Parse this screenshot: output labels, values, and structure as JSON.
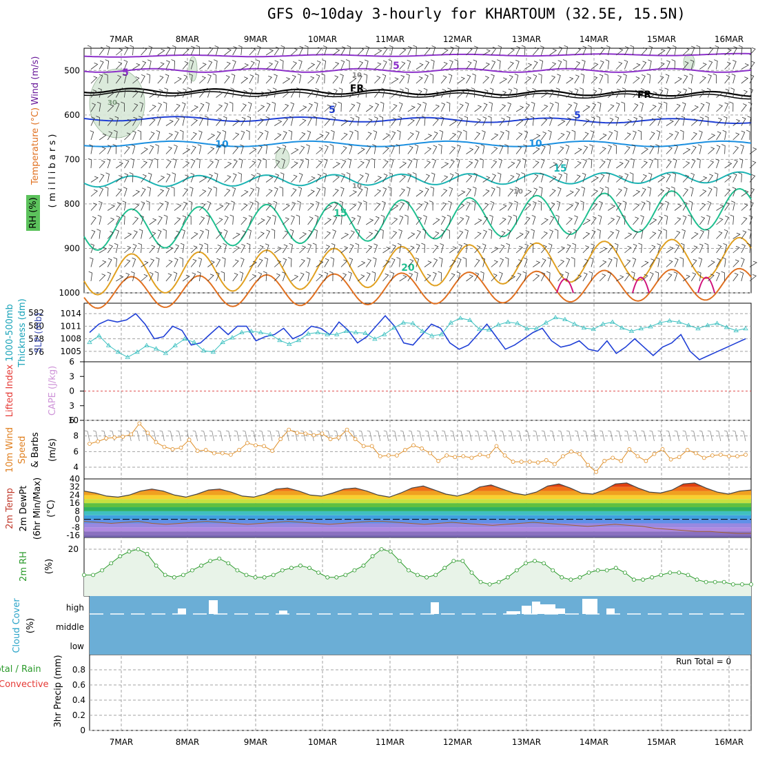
{
  "header": {
    "title": "GFS 0~10day 3-hourly for KHARTOUM (32.5E, 15.5N)"
  },
  "dates": [
    "7MAR",
    "8MAR",
    "9MAR",
    "10MAR",
    "11MAR",
    "12MAR",
    "13MAR",
    "14MAR",
    "15MAR",
    "16MAR"
  ],
  "colors": {
    "temp_purple": "#8b2fc9",
    "temp_black": "#000000",
    "temp_blue": "#1f3fd6",
    "temp_lightblue": "#1a8fe0",
    "temp_teal": "#1ab3b3",
    "temp_green": "#1fbf8f",
    "temp_orange": "#e0a020",
    "temp_darkorange": "#e07020",
    "temp_magenta": "#d0107a",
    "rh_green": "#9fc99f",
    "slp_line": "#1f3fd6",
    "thickness_line": "#3ac0c0",
    "wind_line": "#e0902a",
    "rh2m_line": "#2a9a2a",
    "rh2m_fill": "#e8f3e8",
    "cloud_bg": "#6baed6",
    "grid": "#a0a0a0"
  },
  "panels": {
    "sounding": {
      "labels": [
        "Wind (m/s)",
        "Temperature (°C)",
        "RH (%)"
      ],
      "axis_label": "( m i l l i b a r s )",
      "contour_labels": {
        "t5a": "5",
        "t5b": "5",
        "fr1": "FR",
        "fr2": "FR",
        "t5c": "5",
        "t5d": "5",
        "t10a": "10",
        "t10b": "10",
        "t15a": "15",
        "t15b": "15",
        "t20": "20",
        "rh30": "30",
        "rh10a": "10",
        "rh10b": "10",
        "rh10c": "10"
      }
    },
    "thickness": {
      "labels": [
        "1000-500mb",
        "Thickness (dm)",
        "SLP (mb)"
      ]
    },
    "lifted": {
      "labels": [
        "Lifted Index",
        "CAPE (J/kg)"
      ]
    },
    "wind10m": {
      "labels": [
        "10m Wind",
        "Speed",
        "& Barbs",
        "(m/s)"
      ]
    },
    "temp2m": {
      "labels": [
        "2m Temp",
        "2m DewPt",
        "(6hr Min/Max)",
        "(°C)"
      ]
    },
    "rh2m": {
      "labels": [
        "2m RH",
        "(%)"
      ]
    },
    "cloud": {
      "labels": [
        "Cloud Cover",
        "(%)"
      ],
      "levels": [
        "high",
        "middle",
        "low"
      ]
    },
    "precip": {
      "labels": [
        "Total / Rain",
        "Convective",
        "3hr Precip (mm)"
      ],
      "run_total": "Run Total = 0"
    }
  },
  "chart_data": [
    {
      "type": "line",
      "name": "sounding",
      "yaxis": {
        "ticks": [
          500,
          600,
          700,
          800,
          900,
          1000
        ],
        "range": [
          450,
          1000
        ],
        "reversed": true,
        "unit": "millibars"
      },
      "x": [
        "7MAR",
        "8MAR",
        "9MAR",
        "10MAR",
        "11MAR",
        "12MAR",
        "13MAR",
        "14MAR",
        "15MAR",
        "16MAR"
      ],
      "contours": [
        {
          "label": "5",
          "approx_pressure": 500
        },
        {
          "label": "FR",
          "approx_pressure": 550
        },
        {
          "label": "5",
          "approx_pressure": 605
        },
        {
          "label": "10",
          "approx_pressure": 665
        },
        {
          "label": "15",
          "approx_pressure": 760
        },
        {
          "label": "20",
          "approx_pressure": 880
        }
      ]
    },
    {
      "type": "line",
      "name": "thickness_slp",
      "y_left_ticks": [
        576,
        578,
        580,
        582
      ],
      "y_right_ticks": [
        1005,
        1008,
        1011,
        1014
      ],
      "series": [
        {
          "name": "SLP",
          "unit": "mb",
          "values": [
            1009.5,
            1011.5,
            1012.5,
            1012,
            1012.5,
            1014,
            1011.5,
            1008,
            1008.5,
            1011,
            1010,
            1006.5,
            1007,
            1009,
            1011,
            1009,
            1011,
            1011,
            1007.5,
            1008.5,
            1009,
            1010.5,
            1008,
            1009,
            1011,
            1010.5,
            1009,
            1012,
            1010,
            1007,
            1008.5,
            1011,
            1013.5,
            1011,
            1007,
            1006.5,
            1009,
            1011.5,
            1010.5,
            1007,
            1005.5,
            1006.5,
            1009,
            1011.5,
            1008.5,
            1005.5,
            1006.5,
            1008,
            1009.5,
            1010.5,
            1007.5,
            1006,
            1006.5,
            1007.5,
            1005.5,
            1005,
            1007.5,
            1004.5,
            1006,
            1008,
            1006,
            1004,
            1006,
            1007,
            1009,
            1005,
            1003,
            1004,
            1005,
            1006,
            1007,
            1008
          ]
        },
        {
          "name": "1000-500mb Thickness",
          "unit": "dm",
          "values": [
            577.5,
            578.5,
            577,
            576,
            575.2,
            576,
            577,
            576.5,
            575.8,
            577,
            578,
            577.5,
            576.2,
            576,
            577.5,
            578.2,
            579,
            579.2,
            579,
            578.7,
            577.8,
            577.2,
            577.8,
            578.8,
            579,
            578.7,
            578.7,
            579.2,
            579,
            578.9,
            578,
            578.7,
            579.7,
            580.5,
            580.4,
            579.2,
            578.5,
            578.7,
            580.5,
            581.2,
            580.9,
            579.5,
            579.4,
            580.2,
            580.6,
            580.4,
            579.6,
            579.6,
            580.5,
            581.3,
            581,
            580.3,
            579.7,
            579.5,
            580.3,
            580.6,
            579.7,
            579.2,
            579.6,
            579.9,
            580.5,
            580.8,
            580.6,
            580.1,
            579.6,
            580.1,
            580.4,
            579.8,
            579.3,
            579.6
          ]
        }
      ]
    },
    {
      "type": "line",
      "name": "lifted_index_cape",
      "yaxis": {
        "ticks": [
          6,
          3,
          0,
          -3,
          -6
        ],
        "range": [
          -6,
          6
        ]
      },
      "series": []
    },
    {
      "type": "line",
      "name": "wind10m",
      "yaxis": {
        "ticks": [
          4,
          6,
          8,
          10
        ],
        "range": [
          2.5,
          10
        ]
      },
      "series": [
        {
          "name": "10m Wind Speed",
          "unit": "m/s",
          "values": [
            7,
            7.3,
            7.7,
            7.8,
            7.9,
            8.2,
            9.6,
            8.4,
            7.2,
            6.6,
            6.3,
            6.5,
            7.5,
            6.1,
            6.2,
            5.8,
            5.8,
            5.6,
            6.2,
            7.1,
            6.8,
            6.7,
            6.1,
            7.6,
            8.8,
            8.4,
            8.3,
            8.1,
            8.3,
            7.6,
            7.8,
            8.8,
            7.6,
            6.7,
            6.7,
            5.4,
            5.5,
            5.5,
            6.2,
            6.8,
            6.4,
            5.8,
            4.8,
            5.5,
            5.3,
            5.4,
            5.2,
            5.6,
            5.4,
            6.7,
            5.5,
            4.7,
            4.7,
            4.7,
            4.6,
            4.9,
            4.4,
            5.4,
            6,
            5.7,
            4.3,
            3.4,
            4.8,
            5.2,
            4.8,
            6.3,
            5.4,
            4.8,
            5.7,
            6.3,
            5,
            5.3,
            6.2,
            5.8,
            5.2,
            5.5,
            5.6,
            5.4,
            5.4,
            5.6
          ]
        }
      ]
    },
    {
      "type": "area",
      "name": "temp2m",
      "yaxis": {
        "ticks": [
          40,
          32,
          24,
          16,
          8,
          0,
          -8,
          -16
        ],
        "range": [
          -18,
          40
        ]
      },
      "series": [
        {
          "name": "2m Temp",
          "unit": "°C",
          "values": [
            28,
            26,
            23,
            22,
            24,
            28,
            30,
            28,
            24,
            22,
            25,
            29,
            30,
            27,
            23,
            22,
            25,
            30,
            31,
            28,
            24,
            23,
            26,
            30,
            31,
            28,
            24,
            22,
            26,
            31,
            33,
            29,
            25,
            23,
            26,
            32,
            34,
            30,
            26,
            24,
            27,
            33,
            35,
            31,
            26,
            25,
            29,
            35,
            36,
            31,
            27,
            26,
            29,
            35,
            36,
            31,
            27,
            25,
            28,
            29
          ]
        },
        {
          "name": "2m DewPt",
          "unit": "°C",
          "values": [
            -2,
            -3,
            -4,
            -3,
            -2,
            -4,
            -5,
            -4,
            -3,
            -2,
            -3,
            -4,
            -5,
            -4,
            -3,
            -2,
            -3,
            -4,
            -5,
            -4,
            -3,
            -2,
            -2,
            -3,
            -4,
            -5,
            -4,
            -3,
            -4,
            -5,
            -6,
            -5,
            -4,
            -3,
            -4,
            -5,
            -6,
            -7,
            -6,
            -5,
            -6,
            -7,
            -9,
            -10,
            -11,
            -12,
            -12,
            -13,
            -14,
            -14
          ]
        }
      ]
    },
    {
      "type": "line",
      "name": "rh2m",
      "yaxis": {
        "ticks": [
          20
        ],
        "range": [
          0,
          25
        ]
      },
      "series": [
        {
          "name": "2m RH",
          "unit": "%",
          "values": [
            9,
            9,
            11,
            14,
            17,
            19,
            20,
            18,
            13,
            9,
            8,
            9,
            11,
            13,
            15,
            16,
            14,
            11,
            9,
            8,
            8,
            9,
            11,
            12,
            13,
            12,
            10,
            8,
            8,
            9,
            11,
            13,
            17,
            20,
            19,
            15,
            11,
            9,
            8,
            9,
            12,
            15,
            15,
            10,
            6,
            5,
            6,
            8,
            11,
            14,
            15,
            14,
            11,
            8,
            7,
            8,
            10,
            11,
            11,
            12,
            10,
            7,
            7,
            8,
            9,
            10,
            10,
            9,
            7,
            6,
            6,
            6,
            5,
            5,
            5
          ]
        }
      ]
    },
    {
      "type": "bar",
      "name": "cloud_cover",
      "levels": [
        "high",
        "middle",
        "low"
      ],
      "series": []
    },
    {
      "type": "bar",
      "name": "precip",
      "yaxis": {
        "ticks": [
          0,
          0.2,
          0.4,
          0.6,
          0.8
        ],
        "range": [
          0,
          1
        ]
      },
      "series": []
    }
  ]
}
